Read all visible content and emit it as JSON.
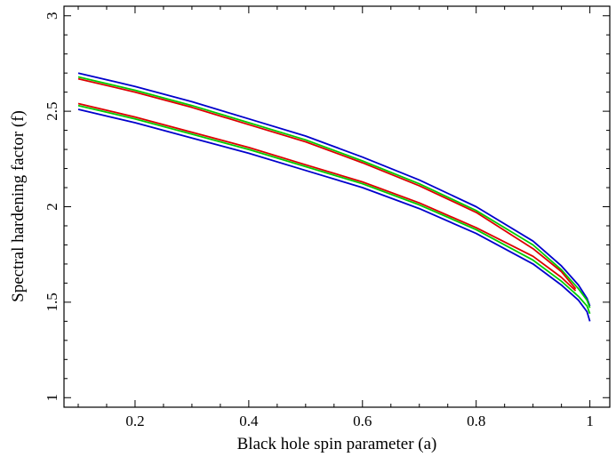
{
  "chart_data": {
    "type": "line",
    "title": "",
    "xlabel": "Black hole spin parameter (a)",
    "ylabel": "Spectral hardening factor (f)",
    "xlim": [
      0.075,
      1.035
    ],
    "ylim": [
      0.95,
      3.05
    ],
    "x_ticks": [
      0.2,
      0.4,
      0.6,
      0.8,
      1
    ],
    "x_tick_labels": [
      "0.2",
      "0.4",
      "0.6",
      "0.8",
      "1"
    ],
    "y_ticks": [
      1,
      1.5,
      2,
      2.5,
      3
    ],
    "y_tick_labels": [
      "1",
      "1.5",
      "2",
      "2.5",
      "3"
    ],
    "grid": false,
    "legend": false,
    "series": [
      {
        "color": "#0000cc",
        "x": [
          0.1,
          0.2,
          0.3,
          0.4,
          0.5,
          0.6,
          0.7,
          0.8,
          0.9,
          0.95,
          0.98,
          0.995,
          1.0
        ],
        "values": [
          2.7,
          2.63,
          2.55,
          2.46,
          2.37,
          2.26,
          2.14,
          2.0,
          1.82,
          1.69,
          1.59,
          1.52,
          1.48
        ]
      },
      {
        "color": "#00cc00",
        "x": [
          0.1,
          0.2,
          0.3,
          0.4,
          0.5,
          0.6,
          0.7,
          0.8,
          0.9,
          0.95,
          0.98,
          0.995,
          1.0
        ],
        "values": [
          2.68,
          2.61,
          2.53,
          2.44,
          2.35,
          2.24,
          2.12,
          1.98,
          1.8,
          1.67,
          1.57,
          1.51,
          1.47
        ]
      },
      {
        "color": "#dd0000",
        "x": [
          0.1,
          0.2,
          0.3,
          0.4,
          0.5,
          0.6,
          0.7,
          0.8,
          0.9,
          0.95,
          0.975
        ],
        "values": [
          2.67,
          2.6,
          2.52,
          2.43,
          2.34,
          2.23,
          2.11,
          1.97,
          1.78,
          1.66,
          1.57
        ]
      },
      {
        "color": "#dd0000",
        "x": [
          0.1,
          0.2,
          0.3,
          0.4,
          0.5,
          0.6,
          0.7,
          0.8,
          0.9,
          0.95,
          0.975
        ],
        "values": [
          2.54,
          2.47,
          2.39,
          2.31,
          2.22,
          2.13,
          2.02,
          1.89,
          1.74,
          1.63,
          1.56
        ]
      },
      {
        "color": "#00cc00",
        "x": [
          0.1,
          0.2,
          0.3,
          0.4,
          0.5,
          0.6,
          0.7,
          0.8,
          0.9,
          0.95,
          0.98,
          0.995,
          1.0
        ],
        "values": [
          2.53,
          2.46,
          2.38,
          2.3,
          2.21,
          2.12,
          2.01,
          1.88,
          1.72,
          1.61,
          1.53,
          1.48,
          1.44
        ]
      },
      {
        "color": "#0000cc",
        "x": [
          0.1,
          0.2,
          0.3,
          0.4,
          0.5,
          0.6,
          0.7,
          0.8,
          0.9,
          0.95,
          0.98,
          0.995,
          1.0
        ],
        "values": [
          2.51,
          2.44,
          2.36,
          2.28,
          2.19,
          2.1,
          1.99,
          1.86,
          1.7,
          1.59,
          1.51,
          1.45,
          1.4
        ]
      }
    ]
  }
}
